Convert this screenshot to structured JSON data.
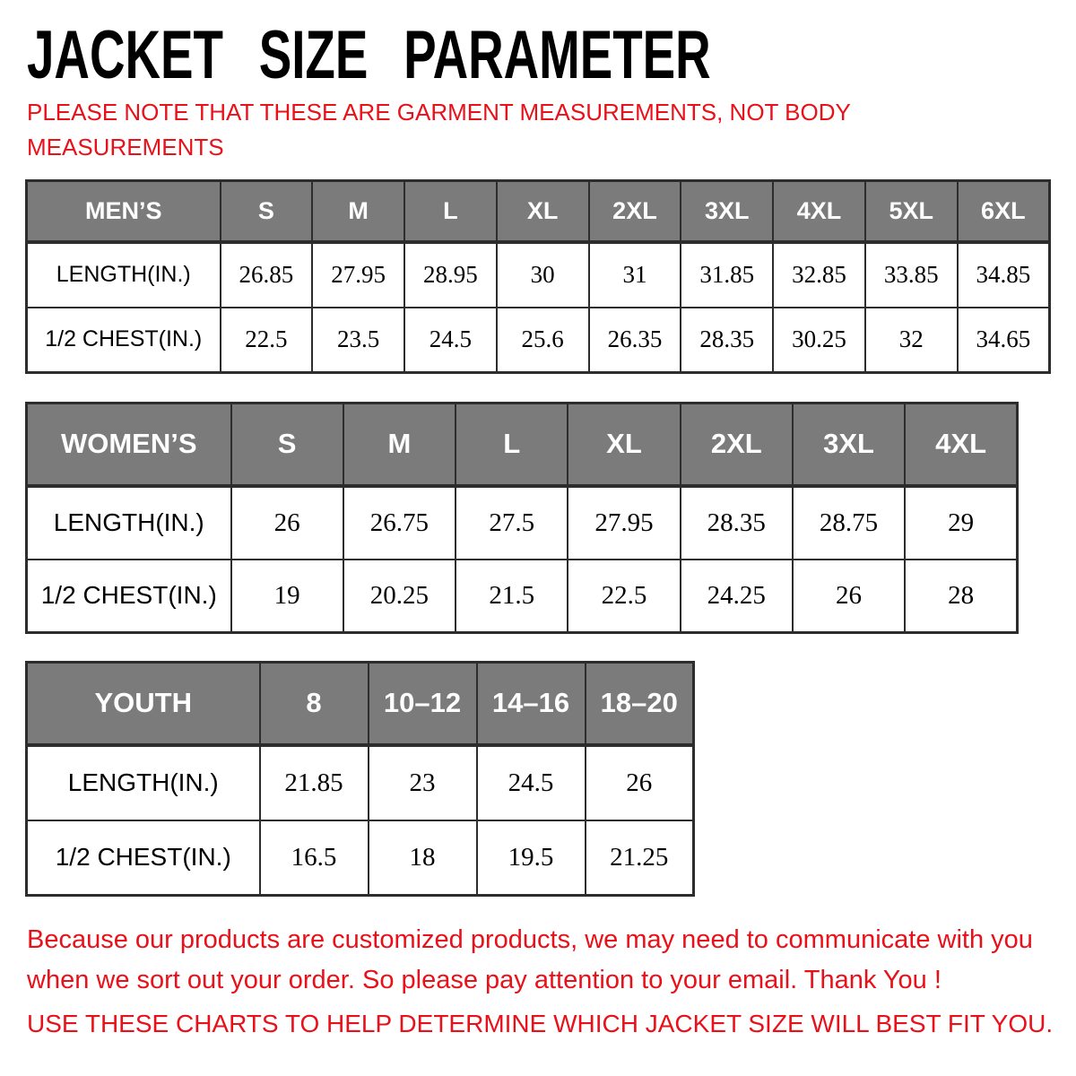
{
  "page": {
    "title": "JACKET SIZE PARAMETER",
    "note": "PLEASE NOTE THAT THESE ARE GARMENT MEASUREMENTS, NOT BODY MEASUREMENTS",
    "footer_para": "Because our products are customized products, we may need to communicate with you when we sort out your order. So please pay attention to your email. Thank You !",
    "footer_advice": "USE THESE CHARTS TO HELP DETERMINE WHICH JACKET SIZE WILL BEST FIT YOU."
  },
  "colors": {
    "accent_red": "#e8111a",
    "header_gray": "#7b7b7b",
    "border_dark": "#2d2d2d"
  },
  "chart_data": [
    {
      "type": "table",
      "name": "MEN’S",
      "sizes": [
        "S",
        "M",
        "L",
        "XL",
        "2XL",
        "3XL",
        "4XL",
        "5XL",
        "6XL"
      ],
      "rows": [
        {
          "label": "LENGTH(IN.)",
          "values": [
            "26.85",
            "27.95",
            "28.95",
            "30",
            "31",
            "31.85",
            "32.85",
            "33.85",
            "34.85"
          ]
        },
        {
          "label": "1/2 CHEST(IN.)",
          "values": [
            "22.5",
            "23.5",
            "24.5",
            "25.6",
            "26.35",
            "28.35",
            "30.25",
            "32",
            "34.65"
          ]
        }
      ]
    },
    {
      "type": "table",
      "name": "WOMEN’S",
      "sizes": [
        "S",
        "M",
        "L",
        "XL",
        "2XL",
        "3XL",
        "4XL"
      ],
      "rows": [
        {
          "label": "LENGTH(IN.)",
          "values": [
            "26",
            "26.75",
            "27.5",
            "27.95",
            "28.35",
            "28.75",
            "29"
          ]
        },
        {
          "label": "1/2 CHEST(IN.)",
          "values": [
            "19",
            "20.25",
            "21.5",
            "22.5",
            "24.25",
            "26",
            "28"
          ]
        }
      ]
    },
    {
      "type": "table",
      "name": "YOUTH",
      "sizes": [
        "8",
        "10–12",
        "14–16",
        "18–20"
      ],
      "rows": [
        {
          "label": "LENGTH(IN.)",
          "values": [
            "21.85",
            "23",
            "24.5",
            "26"
          ]
        },
        {
          "label": "1/2 CHEST(IN.)",
          "values": [
            "16.5",
            "18",
            "19.5",
            "21.25"
          ]
        }
      ]
    }
  ]
}
